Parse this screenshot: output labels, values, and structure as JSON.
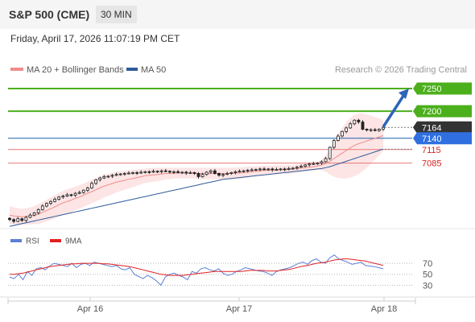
{
  "header": {
    "title": "S&P 500 (CME)",
    "timeframe": "30 MIN"
  },
  "datetime": "Friday, April 17, 2026 11:07:19 PM CET",
  "legend": {
    "items": [
      {
        "label": "MA 20 + Bollinger Bands",
        "color": "#f08c8c"
      },
      {
        "label": "MA 50",
        "color": "#2e5c9a"
      }
    ],
    "credit": "Research © 2026 Trading Central"
  },
  "rsi_legend": {
    "items": [
      {
        "label": "RSI",
        "color": "#5b7fd6"
      },
      {
        "label": "9MA",
        "color": "#e02020"
      }
    ]
  },
  "chart_data": [
    {
      "type": "line",
      "chart": "price",
      "x_labels": [
        "Apr 16",
        "Apr 17",
        "Apr 18"
      ],
      "y_range": [
        6940,
        7275
      ],
      "levels": [
        {
          "value": 7250,
          "label": "7250",
          "kind": "resistance",
          "color": "#4caf1c",
          "tag_bg": "#4caf1c",
          "tag_fg": "#ffffff"
        },
        {
          "value": 7200,
          "label": "7200",
          "kind": "resistance",
          "color": "#4caf1c",
          "tag_bg": "#4caf1c",
          "tag_fg": "#ffffff"
        },
        {
          "value": 7164,
          "label": "7164",
          "kind": "last",
          "color": "#777777",
          "tag_bg": "#333333",
          "tag_fg": "#ffffff"
        },
        {
          "value": 7140,
          "label": "7140",
          "kind": "pivot",
          "color": "#1f5fb0",
          "tag_bg": "#2f6fe0",
          "tag_fg": "#ffffff"
        },
        {
          "value": 7115,
          "label": "7115",
          "kind": "support",
          "color": "#e87878",
          "tag_bg": "none",
          "tag_fg": "#d92020"
        },
        {
          "value": 7085,
          "label": "7085",
          "kind": "support",
          "color": "#e87878",
          "tag_bg": "none",
          "tag_fg": "#d92020"
        }
      ],
      "close": [
        6960,
        6956,
        6962,
        6958,
        6965,
        6970,
        6975,
        6982,
        6990,
        6996,
        7000,
        7005,
        7010,
        7012,
        7015,
        7014,
        7018,
        7020,
        7025,
        7030,
        7040,
        7048,
        7052,
        7055,
        7056,
        7058,
        7060,
        7061,
        7062,
        7063,
        7064,
        7063,
        7065,
        7066,
        7065,
        7067,
        7066,
        7068,
        7067,
        7065,
        7066,
        7064,
        7065,
        7063,
        7064,
        7062,
        7055,
        7060,
        7065,
        7068,
        7062,
        7058,
        7060,
        7062,
        7064,
        7066,
        7067,
        7068,
        7069,
        7070,
        7071,
        7072,
        7071,
        7072,
        7070,
        7071,
        7072,
        7071,
        7073,
        7074,
        7076,
        7078,
        7081,
        7083,
        7084,
        7085,
        7088,
        7095,
        7120,
        7135,
        7145,
        7155,
        7163,
        7172,
        7180,
        7176,
        7160,
        7158,
        7159,
        7157,
        7160,
        7164
      ],
      "ma20": [
        6970,
        6968,
        6967,
        6966,
        6967,
        6968,
        6970,
        6972,
        6976,
        6980,
        6984,
        6988,
        6993,
        6997,
        7000,
        7003,
        7007,
        7010,
        7014,
        7018,
        7022,
        7026,
        7030,
        7034,
        7037,
        7040,
        7043,
        7045,
        7047,
        7049,
        7051,
        7053,
        7055,
        7057,
        7058,
        7059,
        7060,
        7061,
        7062,
        7062,
        7063,
        7063,
        7063,
        7063,
        7063,
        7063,
        7062,
        7062,
        7062,
        7062,
        7062,
        7062,
        7062,
        7062,
        7062,
        7063,
        7063,
        7064,
        7065,
        7066,
        7067,
        7068,
        7069,
        7069,
        7070,
        7070,
        7071,
        7071,
        7071,
        7072,
        7073,
        7074,
        7075,
        7076,
        7077,
        7079,
        7081,
        7084,
        7089,
        7095,
        7101,
        7107,
        7113,
        7119,
        7124,
        7128,
        7131,
        7134,
        7137,
        7140,
        7143,
        7146
      ],
      "bb_upper": [
        6990,
        6987,
        6985,
        6984,
        6985,
        6987,
        6990,
        6994,
        6999,
        7004,
        7009,
        7014,
        7019,
        7023,
        7027,
        7030,
        7033,
        7036,
        7040,
        7044,
        7048,
        7052,
        7056,
        7059,
        7062,
        7064,
        7066,
        7067,
        7068,
        7069,
        7070,
        7071,
        7072,
        7073,
        7074,
        7074,
        7075,
        7075,
        7075,
        7075,
        7075,
        7075,
        7075,
        7075,
        7075,
        7075,
        7075,
        7075,
        7075,
        7075,
        7075,
        7075,
        7075,
        7075,
        7075,
        7075,
        7076,
        7076,
        7077,
        7077,
        7078,
        7078,
        7079,
        7079,
        7079,
        7080,
        7080,
        7080,
        7081,
        7081,
        7082,
        7083,
        7084,
        7085,
        7086,
        7088,
        7093,
        7102,
        7118,
        7135,
        7150,
        7163,
        7175,
        7185,
        7192,
        7195,
        7195,
        7193,
        7190,
        7187,
        7184,
        7180
      ],
      "bb_lower": [
        6950,
        6949,
        6949,
        6948,
        6949,
        6949,
        6950,
        6950,
        6953,
        6956,
        6959,
        6962,
        6967,
        6971,
        6973,
        6976,
        6981,
        6984,
        6988,
        6992,
        6996,
        7000,
        7004,
        7009,
        7012,
        7016,
        7020,
        7023,
        7026,
        7029,
        7032,
        7035,
        7038,
        7041,
        7042,
        7044,
        7045,
        7047,
        7049,
        7049,
        7051,
        7051,
        7051,
        7051,
        7051,
        7051,
        7049,
        7049,
        7049,
        7049,
        7049,
        7049,
        7049,
        7049,
        7049,
        7051,
        7050,
        7052,
        7053,
        7055,
        7056,
        7058,
        7059,
        7059,
        7061,
        7060,
        7062,
        7062,
        7061,
        7063,
        7064,
        7065,
        7066,
        7067,
        7068,
        7070,
        7069,
        7066,
        7060,
        7055,
        7052,
        7051,
        7051,
        7053,
        7056,
        7061,
        7067,
        7075,
        7084,
        7093,
        7102,
        7112
      ],
      "ma50": [
        6945,
        6947,
        6949,
        6951,
        6953,
        6955,
        6957,
        6959,
        6961,
        6963,
        6965,
        6967,
        6969,
        6971,
        6973,
        6975,
        6977,
        6979,
        6981,
        6983,
        6985,
        6987,
        6989,
        6991,
        6993,
        6995,
        6997,
        6999,
        7001,
        7003,
        7005,
        7007,
        7009,
        7011,
        7013,
        7015,
        7017,
        7019,
        7021,
        7023,
        7025,
        7027,
        7029,
        7031,
        7033,
        7035,
        7037,
        7039,
        7041,
        7043,
        7045,
        7047,
        7049,
        7050,
        7051,
        7052,
        7053,
        7054,
        7055,
        7056,
        7057,
        7058,
        7059,
        7060,
        7061,
        7062,
        7063,
        7064,
        7065,
        7066,
        7067,
        7068,
        7069,
        7070,
        7071,
        7072,
        7073,
        7075,
        7077,
        7080,
        7083,
        7086,
        7089,
        7092,
        7095,
        7098,
        7101,
        7104,
        7107,
        7110,
        7113,
        7116
      ],
      "projection": {
        "from": 7165,
        "to": 7250,
        "color": "#2e63b8"
      }
    },
    {
      "type": "line",
      "chart": "rsi",
      "y_ticks": [
        70,
        50,
        30
      ],
      "rsi": [
        45,
        42,
        50,
        40,
        55,
        48,
        60,
        62,
        58,
        65,
        70,
        68,
        66,
        64,
        70,
        62,
        68,
        70,
        66,
        72,
        70,
        68,
        66,
        64,
        66,
        60,
        58,
        62,
        50,
        46,
        42,
        48,
        44,
        38,
        30,
        45,
        50,
        52,
        48,
        45,
        40,
        55,
        52,
        60,
        62,
        58,
        56,
        60,
        52,
        48,
        50,
        55,
        58,
        62,
        60,
        58,
        56,
        55,
        52,
        48,
        55,
        58,
        60,
        62,
        66,
        70,
        72,
        68,
        75,
        78,
        72,
        70,
        80,
        85,
        78,
        75,
        72,
        68,
        70,
        72,
        66,
        65,
        64,
        62,
        60
      ],
      "ma9": [
        50,
        50,
        51,
        52,
        54,
        56,
        58,
        60,
        62,
        64,
        65,
        66,
        67,
        68,
        69,
        69,
        70,
        70,
        70,
        70,
        70,
        69,
        69,
        68,
        67,
        66,
        65,
        64,
        62,
        60,
        58,
        56,
        54,
        52,
        50,
        49,
        48,
        48,
        48,
        48,
        49,
        50,
        51,
        52,
        53,
        54,
        55,
        55,
        55,
        55,
        55,
        55,
        55,
        56,
        57,
        57,
        57,
        57,
        56,
        56,
        56,
        57,
        58,
        59,
        61,
        63,
        65,
        66,
        68,
        70,
        71,
        72,
        74,
        76,
        77,
        78,
        78,
        77,
        76,
        75,
        74,
        72,
        70,
        68,
        66
      ]
    }
  ]
}
